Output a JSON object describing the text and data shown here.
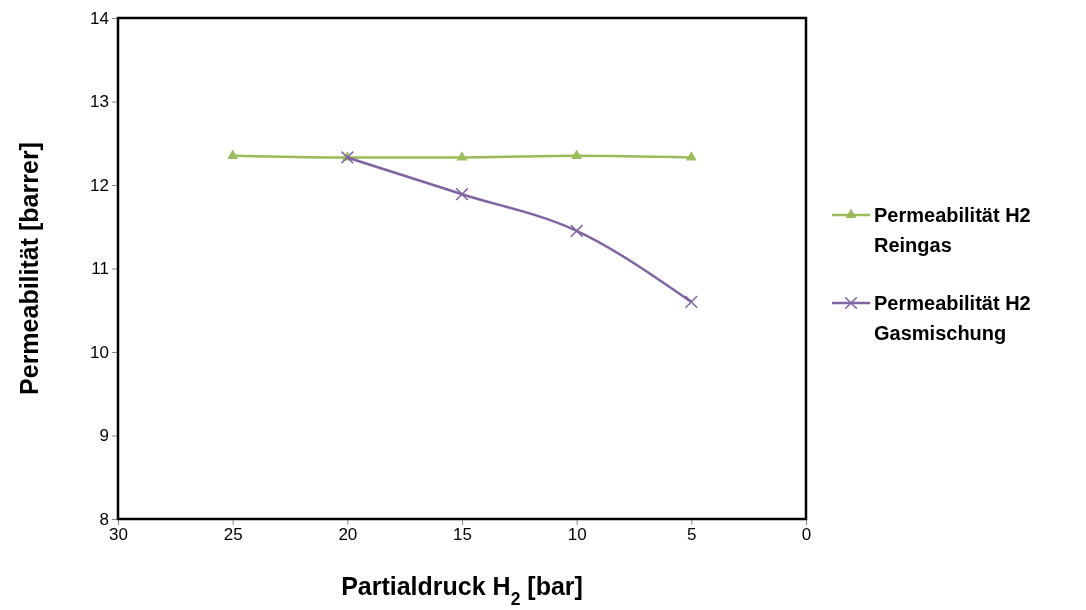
{
  "chart_data": {
    "type": "line",
    "xlabel": "Partialdruck H$_{2}$ [bar]",
    "ylabel": "Permeabilität [barrer]",
    "xlim": [
      30,
      0
    ],
    "xticks": [
      30,
      25,
      20,
      15,
      10,
      5,
      0
    ],
    "ylim": [
      8,
      14
    ],
    "yticks": [
      8,
      9,
      10,
      11,
      12,
      13,
      14
    ],
    "grid": false,
    "legend": "right",
    "series": [
      {
        "name": "Permeabilität H2 Reingas",
        "color": "#9bbb59",
        "marker": "triangle",
        "x": [
          25,
          20,
          15,
          10,
          5
        ],
        "values": [
          12.35,
          12.33,
          12.33,
          12.35,
          12.33
        ]
      },
      {
        "name": "Permeabilität H2 Gasmischung",
        "color": "#8064a2",
        "marker": "cross",
        "x": [
          20,
          15,
          10,
          5
        ],
        "values": [
          12.33,
          11.89,
          11.45,
          10.6
        ]
      }
    ]
  }
}
